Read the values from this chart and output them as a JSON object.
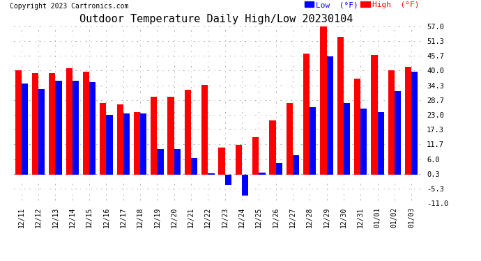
{
  "title": "Outdoor Temperature Daily High/Low 20230104",
  "copyright": "Copyright 2023 Cartronics.com",
  "categories": [
    "12/11",
    "12/12",
    "12/13",
    "12/14",
    "12/15",
    "12/16",
    "12/17",
    "12/18",
    "12/19",
    "12/20",
    "12/21",
    "12/22",
    "12/23",
    "12/24",
    "12/25",
    "12/26",
    "12/27",
    "12/28",
    "12/29",
    "12/30",
    "12/31",
    "01/01",
    "01/02",
    "01/03"
  ],
  "high": [
    40.0,
    39.0,
    39.0,
    41.0,
    39.5,
    27.5,
    27.0,
    24.0,
    30.0,
    30.0,
    32.5,
    34.5,
    10.5,
    11.5,
    14.5,
    21.0,
    27.5,
    46.5,
    57.0,
    53.0,
    37.0,
    46.0,
    40.0,
    41.5
  ],
  "low": [
    35.0,
    33.0,
    36.0,
    36.0,
    35.5,
    23.0,
    23.5,
    23.5,
    10.0,
    10.0,
    6.5,
    0.5,
    -4.0,
    -8.0,
    1.0,
    4.5,
    7.5,
    26.0,
    45.5,
    27.5,
    25.5,
    24.0,
    32.0,
    39.5
  ],
  "ylim": [
    -11.0,
    57.0
  ],
  "yticks": [
    -11.0,
    -5.3,
    0.3,
    6.0,
    11.7,
    17.3,
    23.0,
    28.7,
    34.3,
    40.0,
    45.7,
    51.3,
    57.0
  ],
  "high_color": "#ff0000",
  "low_color": "#0000ff",
  "bg_color": "#ffffff",
  "grid_color": "#aaaaaa",
  "title_fontsize": 11,
  "bar_width": 0.38
}
